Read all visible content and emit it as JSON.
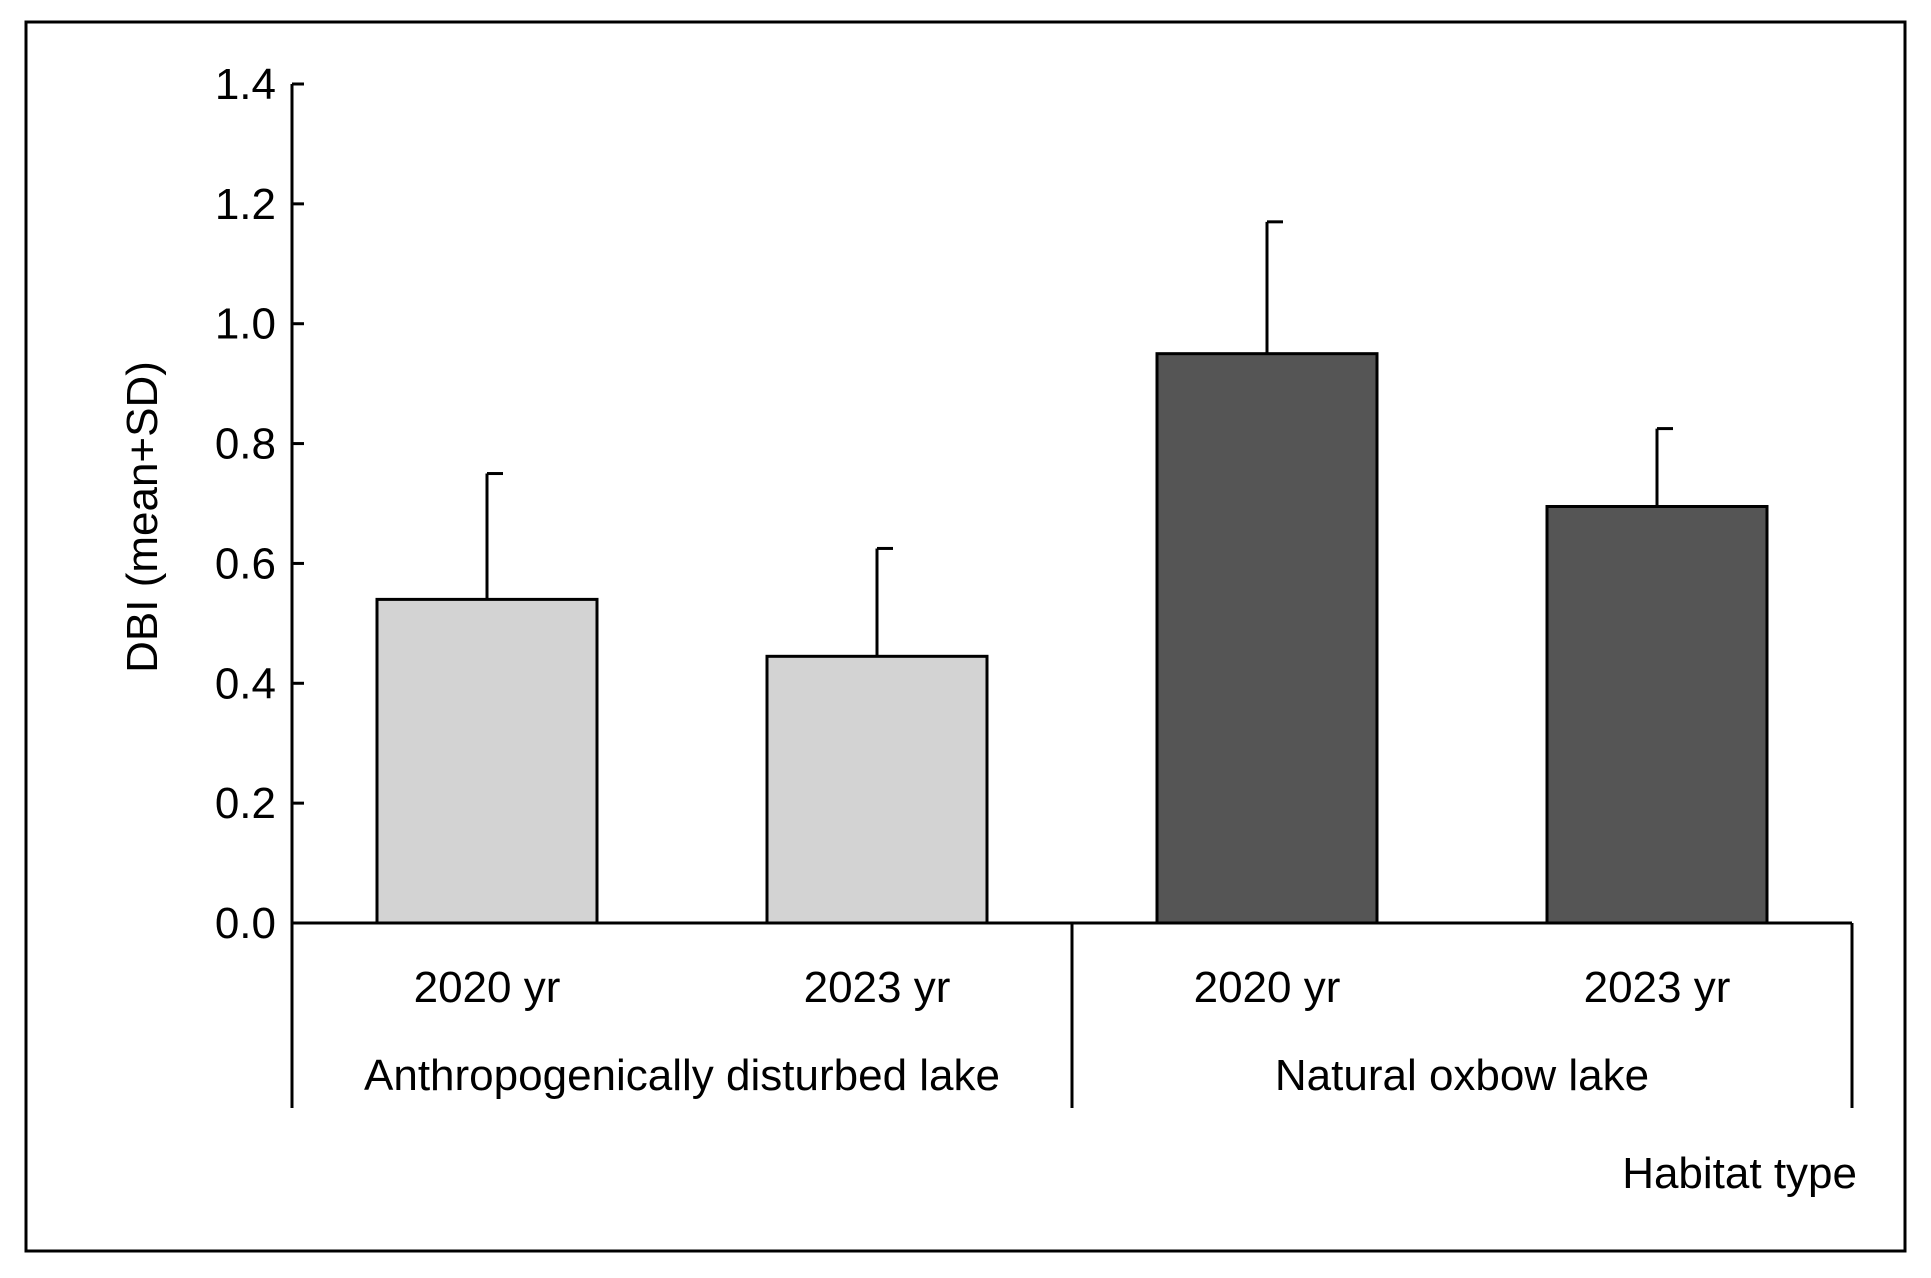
{
  "chart_data": {
    "type": "bar",
    "title": "",
    "ylabel": "DBI (mean+SD)",
    "xlabel": "Habitat type",
    "ylim": [
      0,
      1.4
    ],
    "yticks": [
      "0.0",
      "0.2",
      "0.4",
      "0.6",
      "0.8",
      "1.0",
      "1.2",
      "1.4"
    ],
    "yticks_values": [
      0,
      0.2,
      0.4,
      0.6,
      0.8,
      1.0,
      1.2,
      1.4
    ],
    "groups": [
      {
        "name": "Anthropogenically disturbed lake",
        "color": "#d3d3d3",
        "bars": [
          {
            "label": "2020 yr",
            "value": 0.54,
            "sd": 0.21
          },
          {
            "label": "2023 yr",
            "value": 0.445,
            "sd": 0.18
          }
        ]
      },
      {
        "name": "Natural oxbow lake",
        "color": "#555555",
        "bars": [
          {
            "label": "2020 yr",
            "value": 0.95,
            "sd": 0.22
          },
          {
            "label": "2023 yr",
            "value": 0.695,
            "sd": 0.13
          }
        ]
      }
    ],
    "grid": false,
    "legend": "none"
  }
}
